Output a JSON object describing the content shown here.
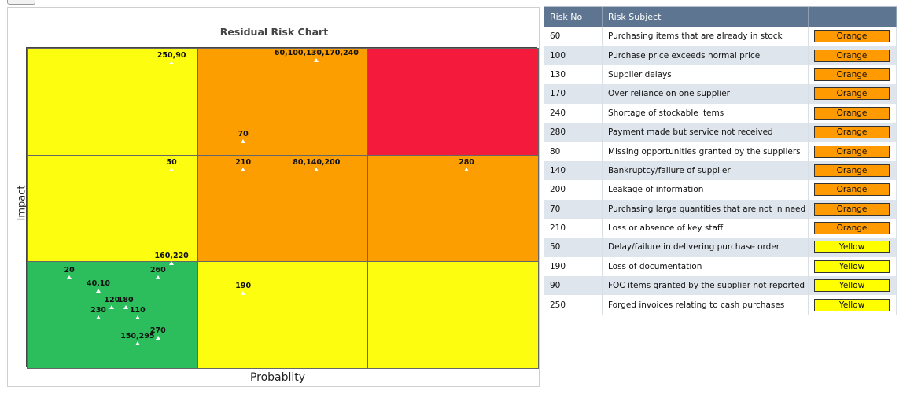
{
  "chart_data": {
    "type": "heatmap",
    "title": "Residual Risk Chart",
    "xlabel": "Probablity",
    "ylabel": "Impact",
    "xlim": [
      0,
      3
    ],
    "ylim": [
      0,
      3
    ],
    "grid": {
      "rows": [
        "high",
        "medium",
        "low"
      ],
      "cols": [
        "low",
        "medium",
        "high"
      ],
      "colors": [
        [
          "#fdfd0f",
          "#fd9e00",
          "#f31a3c"
        ],
        [
          "#fdfd0f",
          "#fd9e00",
          "#fd9e00"
        ],
        [
          "#2cbe5c",
          "#fdfd0f",
          "#fdfd0f"
        ]
      ]
    },
    "points": [
      {
        "label": "250,90",
        "x": 0.85,
        "y": 2.86
      },
      {
        "label": "60,100,130,170,240",
        "x": 1.7,
        "y": 2.88
      },
      {
        "label": "70",
        "x": 1.27,
        "y": 2.12
      },
      {
        "label": "50",
        "x": 0.85,
        "y": 1.86
      },
      {
        "label": "210",
        "x": 1.27,
        "y": 1.86
      },
      {
        "label": "80,140,200",
        "x": 1.7,
        "y": 1.86
      },
      {
        "label": "280",
        "x": 2.58,
        "y": 1.86
      },
      {
        "label": "190",
        "x": 1.27,
        "y": 0.7
      },
      {
        "label": "160,220",
        "x": 0.85,
        "y": 0.98
      },
      {
        "label": "20",
        "x": 0.25,
        "y": 0.85
      },
      {
        "label": "260",
        "x": 0.77,
        "y": 0.85
      },
      {
        "label": "40,10",
        "x": 0.42,
        "y": 0.72
      },
      {
        "label": "120",
        "x": 0.5,
        "y": 0.57
      },
      {
        "label": "180",
        "x": 0.58,
        "y": 0.57
      },
      {
        "label": "230",
        "x": 0.42,
        "y": 0.47
      },
      {
        "label": "110",
        "x": 0.65,
        "y": 0.47
      },
      {
        "label": "270",
        "x": 0.77,
        "y": 0.28
      },
      {
        "label": "150,295",
        "x": 0.65,
        "y": 0.23
      }
    ]
  },
  "table": {
    "headers": [
      "Risk No",
      "Risk Subject",
      ""
    ],
    "colors": {
      "Orange": "#ff9a00",
      "Yellow": "#ffff00"
    },
    "rows": [
      {
        "no": "60",
        "subject": "Purchasing items that are already in stock",
        "level": "Orange"
      },
      {
        "no": "100",
        "subject": "Purchase price exceeds normal price",
        "level": "Orange"
      },
      {
        "no": "130",
        "subject": "Supplier delays",
        "level": "Orange"
      },
      {
        "no": "170",
        "subject": "Over reliance on one supplier",
        "level": "Orange"
      },
      {
        "no": "240",
        "subject": "Shortage of stockable items",
        "level": "Orange"
      },
      {
        "no": "280",
        "subject": "Payment made but service not received",
        "level": "Orange"
      },
      {
        "no": "80",
        "subject": "Missing opportunities granted by the suppliers",
        "level": "Orange"
      },
      {
        "no": "140",
        "subject": "Bankruptcy/failure of supplier",
        "level": "Orange"
      },
      {
        "no": "200",
        "subject": "Leakage of information",
        "level": "Orange"
      },
      {
        "no": "70",
        "subject": "Purchasing large quantities that are not in need",
        "level": "Orange"
      },
      {
        "no": "210",
        "subject": "Loss or absence of key staff",
        "level": "Orange"
      },
      {
        "no": "50",
        "subject": "Delay/failure in delivering purchase order",
        "level": "Yellow"
      },
      {
        "no": "190",
        "subject": "Loss of documentation",
        "level": "Yellow"
      },
      {
        "no": "90",
        "subject": "FOC items granted by the supplier not reported",
        "level": "Yellow"
      },
      {
        "no": "250",
        "subject": "Forged invoices relating to cash purchases",
        "level": "Yellow"
      }
    ]
  }
}
